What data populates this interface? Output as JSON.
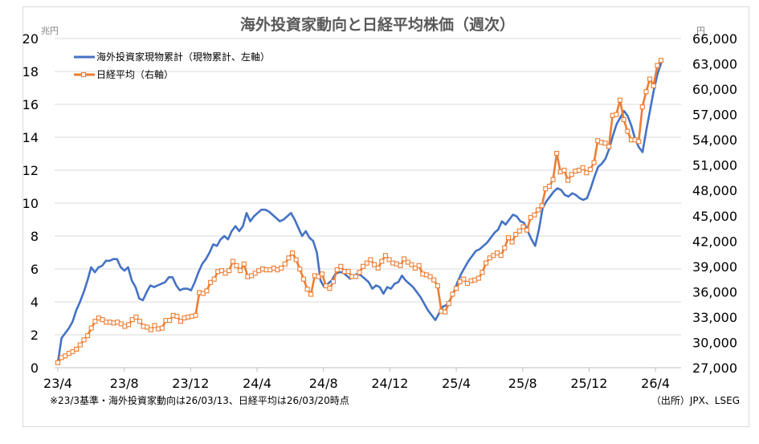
{
  "chart_data": {
    "type": "line",
    "title": "海外投資家動向と日経平均株価（週次）",
    "left_unit": "兆円",
    "right_unit": "円",
    "ylim_left": [
      0,
      20
    ],
    "ylim_right": [
      27000,
      66000
    ],
    "y_ticks_left": [
      "0",
      "2",
      "4",
      "6",
      "8",
      "10",
      "12",
      "14",
      "16",
      "18",
      "20"
    ],
    "y_ticks_right": [
      "27,000",
      "30,000",
      "33,000",
      "36,000",
      "39,000",
      "42,000",
      "45,000",
      "48,000",
      "51,000",
      "54,000",
      "57,000",
      "60,000",
      "63,000",
      "66,000"
    ],
    "x_ticks": [
      "23/4",
      "23/8",
      "23/12",
      "24/4",
      "24/8",
      "24/12",
      "25/4",
      "25/8",
      "25/12",
      "26/4"
    ],
    "grid": true,
    "legend_position": "top-left",
    "footnote": "※23/3基準・海外投資家動向は26/03/13、日経平均は26/03/20時点",
    "source": "（出所）JPX、LSEG",
    "series": [
      {
        "name": "海外投資家現物累計（現物累計、左軸）",
        "axis": "left",
        "color": "#4472C4",
        "values": [
          0.3,
          1.8,
          2.1,
          2.4,
          2.8,
          3.5,
          4.0,
          4.6,
          5.3,
          6.1,
          5.8,
          6.1,
          6.2,
          6.5,
          6.5,
          6.6,
          6.6,
          6.1,
          5.9,
          6.1,
          5.3,
          4.9,
          4.2,
          4.1,
          4.6,
          5.0,
          4.9,
          5.0,
          5.1,
          5.2,
          5.5,
          5.5,
          5.0,
          4.7,
          4.8,
          4.8,
          4.7,
          5.2,
          5.8,
          6.3,
          6.6,
          7.0,
          7.5,
          7.4,
          7.8,
          8.0,
          7.8,
          8.3,
          8.6,
          8.3,
          8.6,
          9.4,
          8.9,
          9.2,
          9.4,
          9.6,
          9.6,
          9.5,
          9.3,
          9.1,
          8.9,
          9.0,
          9.2,
          9.4,
          9.0,
          8.5,
          8.0,
          8.3,
          7.9,
          7.7,
          7.0,
          5.3,
          4.9,
          5.1,
          5.3,
          5.7,
          5.8,
          5.8,
          5.6,
          5.4,
          5.6,
          5.7,
          5.6,
          5.4,
          5.2,
          4.8,
          5.0,
          4.9,
          4.5,
          4.9,
          4.8,
          5.1,
          5.2,
          5.6,
          5.3,
          5.1,
          4.9,
          4.6,
          4.3,
          3.9,
          3.5,
          3.2,
          2.9,
          3.3,
          3.7,
          3.8,
          4.1,
          4.6,
          5.2,
          5.7,
          6.1,
          6.5,
          6.8,
          7.1,
          7.2,
          7.4,
          7.6,
          7.9,
          8.2,
          8.4,
          8.9,
          8.7,
          9.0,
          9.3,
          9.2,
          8.9,
          8.8,
          8.3,
          7.8,
          7.4,
          8.4,
          9.7,
          10.1,
          10.4,
          10.7,
          10.9,
          10.8,
          10.5,
          10.4,
          10.6,
          10.5,
          10.3,
          10.2,
          10.3,
          10.9,
          11.6,
          12.2,
          12.4,
          12.7,
          13.3,
          14.1,
          14.8,
          15.2,
          15.6,
          15.3,
          14.7,
          13.9,
          13.4,
          13.1,
          14.4,
          15.6,
          16.8,
          17.8,
          18.5
        ]
      },
      {
        "name": "日経平均（右軸）",
        "axis": "right",
        "color": "#ED7D31",
        "values": [
          27600,
          28200,
          28400,
          28700,
          28900,
          29200,
          29700,
          30300,
          30800,
          31700,
          32500,
          32900,
          32700,
          32400,
          32400,
          32300,
          32400,
          32200,
          31900,
          32100,
          32700,
          33000,
          32500,
          31900,
          31800,
          31500,
          32000,
          31600,
          31700,
          32600,
          32600,
          33200,
          33100,
          32500,
          32900,
          33000,
          33100,
          33200,
          35900,
          35800,
          36100,
          37100,
          37500,
          38400,
          38500,
          38200,
          38500,
          39600,
          39100,
          38500,
          39300,
          37800,
          37900,
          38200,
          38500,
          38700,
          38600,
          38600,
          38800,
          38600,
          38800,
          39300,
          40000,
          40600,
          39800,
          38700,
          37500,
          36300,
          35700,
          37900,
          37800,
          38100,
          36700,
          36400,
          37200,
          38600,
          39000,
          38400,
          38400,
          37800,
          37800,
          38300,
          39000,
          39400,
          39800,
          39200,
          38800,
          39600,
          40300,
          39800,
          39400,
          39300,
          39100,
          39900,
          39500,
          39200,
          38800,
          39100,
          38100,
          38000,
          37800,
          37400,
          36700,
          33700,
          33600,
          34600,
          35700,
          36400,
          37200,
          37500,
          37000,
          37300,
          37400,
          37600,
          38300,
          39400,
          40000,
          40300,
          40600,
          40300,
          41200,
          42400,
          41900,
          42800,
          43200,
          43700,
          43300,
          44800,
          45100,
          45700,
          46200,
          48200,
          48500,
          49300,
          52400,
          50200,
          50400,
          49200,
          49900,
          50300,
          50400,
          50700,
          50100,
          50500,
          51300,
          53900,
          53700,
          53600,
          53200,
          56900,
          57000,
          58700,
          56400,
          55000,
          54000,
          54000,
          53800,
          57900,
          59700,
          61200,
          60400,
          62800,
          63400
        ]
      }
    ]
  }
}
